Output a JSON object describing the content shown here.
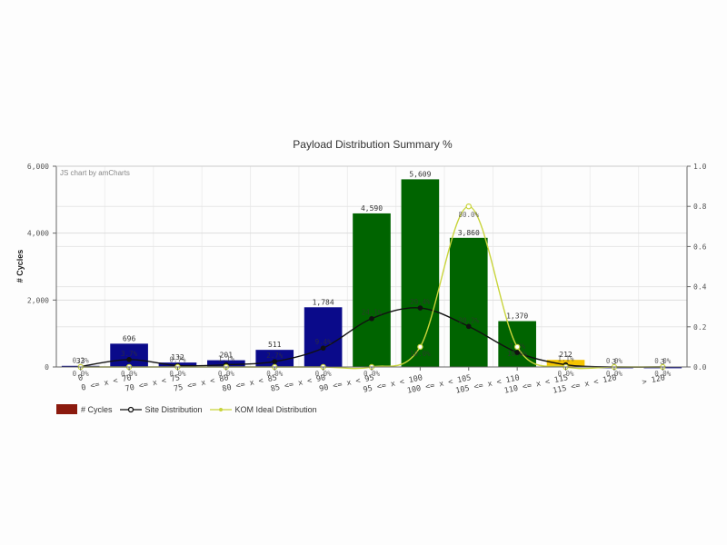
{
  "chart_data": {
    "type": "bar",
    "title": "Payload Distribution Summary %",
    "credit": "JS chart by amCharts",
    "xlabel": "",
    "ylabel": "# Cycles",
    "ylim": [
      0,
      6000
    ],
    "y_ticks": [
      "0",
      "2,000",
      "4,000",
      "6,000"
    ],
    "y2lim": [
      0,
      1.0
    ],
    "y2_ticks": [
      "0.0",
      "0.2",
      "0.4",
      "0.6",
      "0.8",
      "1.0"
    ],
    "grid": true,
    "legend_position": "bottom-left",
    "categories": [
      "0",
      "0 <= x < 70",
      "70 <= x < 75",
      "75 <= x < 80",
      "80 <= x < 85",
      "85 <= x < 90",
      "90 <= x < 95",
      "95 <= x < 100",
      "100 <= x < 105",
      "105 <= x < 110",
      "110 <= x < 115",
      "115 <= x < 120",
      "> 120"
    ],
    "series": [
      {
        "name": "# Cycles",
        "type": "bar",
        "axis": "left",
        "legend_color": "#8b1a0e",
        "values": [
          33,
          696,
          132,
          201,
          511,
          1784,
          4590,
          5609,
          3860,
          1370,
          212,
          3,
          3
        ],
        "labels": [
          "33",
          "696",
          "132",
          "201",
          "511",
          "1,784",
          "4,590",
          "5,609",
          "3,860",
          "1,370",
          "212",
          "3",
          "3"
        ],
        "bar_colors": [
          "#0a0a8a",
          "#0a0a8a",
          "#0a0a8a",
          "#0a0a8a",
          "#0a0a8a",
          "#0a0a8a",
          "#006400",
          "#006400",
          "#006400",
          "#006400",
          "#f5c400",
          "#0a0a8a",
          "#0a0a8a"
        ]
      },
      {
        "name": "Site Distribution",
        "type": "line",
        "axis": "right",
        "color": "#111111",
        "values": [
          0.002,
          0.037,
          0.007,
          0.011,
          0.027,
          0.094,
          0.241,
          0.294,
          0.202,
          0.072,
          0.011,
          0.0,
          0.0
        ],
        "labels": [
          "0.2%",
          "3.7%",
          "0.7%",
          "1.1%",
          "2.7%",
          "9.4%",
          "24.1%",
          "29.4%",
          "20.2%",
          "7.2%",
          "1.1%",
          "0.0%",
          "0.0%"
        ]
      },
      {
        "name": "KOM Ideal Distribution",
        "type": "line",
        "axis": "right",
        "color": "#c8d43a",
        "values": [
          0,
          0,
          0,
          0,
          0,
          0,
          0,
          0.1,
          0.8,
          0.1,
          0,
          0,
          0
        ],
        "labels": [
          "0.0%",
          "0.0%",
          "0.0%",
          "0.0%",
          "0.0%",
          "0.0%",
          "0.0%",
          "10.0%",
          "80.0%",
          "10.0%",
          "0.0%",
          "0.0%",
          "0.0%"
        ]
      }
    ]
  },
  "legend": {
    "items": [
      {
        "label": "# Cycles",
        "color": "#8b1a0e"
      },
      {
        "label": "Site Distribution",
        "color": "#111111"
      },
      {
        "label": "KOM Ideal Distribution",
        "color": "#c8d43a"
      }
    ]
  }
}
